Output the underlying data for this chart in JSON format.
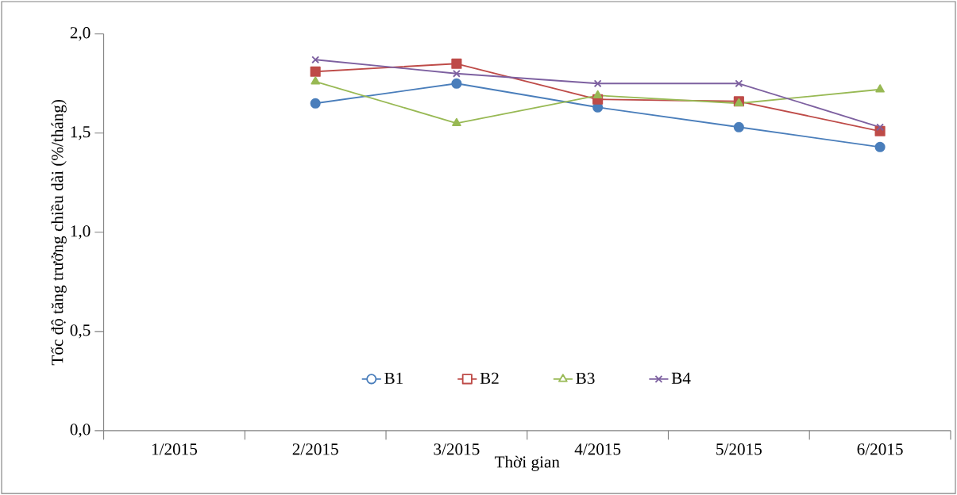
{
  "chart_data": {
    "type": "line",
    "xlabel": "Thời gian",
    "ylabel": "Tốc độ tăng trưởng chiều dài (%/tháng)",
    "categories": [
      "1/2015",
      "2/2015",
      "3/2015",
      "4/2015",
      "5/2015",
      "6/2015"
    ],
    "series": [
      {
        "name": "B1",
        "color": "#4a7ebb",
        "marker": "circle",
        "values": [
          null,
          1.65,
          1.75,
          1.63,
          1.53,
          1.43
        ]
      },
      {
        "name": "B2",
        "color": "#be4b48",
        "marker": "square",
        "values": [
          null,
          1.81,
          1.85,
          1.67,
          1.66,
          1.51
        ]
      },
      {
        "name": "B3",
        "color": "#98b954",
        "marker": "triangle",
        "values": [
          null,
          1.76,
          1.55,
          1.69,
          1.65,
          1.72
        ]
      },
      {
        "name": "B4",
        "color": "#7d60a0",
        "marker": "cross",
        "values": [
          null,
          1.87,
          1.8,
          1.75,
          1.75,
          1.53
        ]
      }
    ],
    "ylim": [
      0,
      2
    ],
    "yticks": [
      {
        "value": 0,
        "label": "0,0"
      },
      {
        "value": 0.5,
        "label": "0,5"
      },
      {
        "value": 1,
        "label": "1,0"
      },
      {
        "value": 1.5,
        "label": "1,5"
      },
      {
        "value": 2,
        "label": "2,0"
      }
    ],
    "legend": "bottom"
  }
}
